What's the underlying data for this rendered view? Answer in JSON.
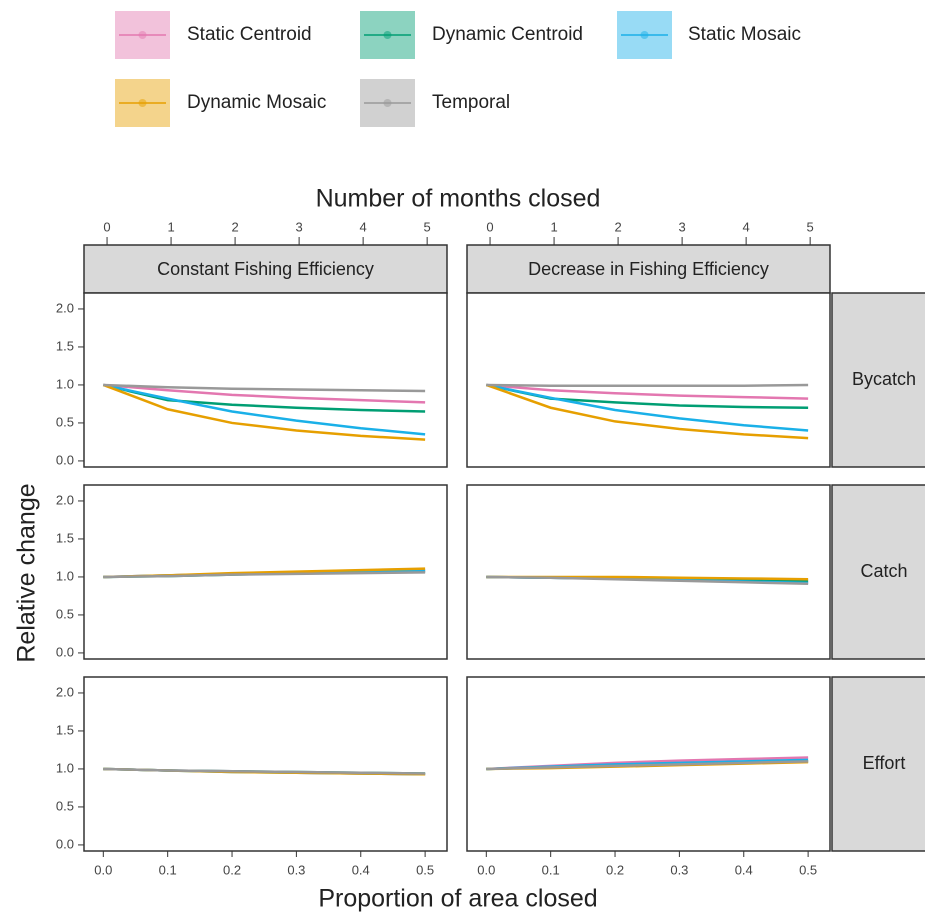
{
  "chart_data": {
    "type": "line",
    "xlabel": "Proportion of area closed",
    "x2label": "Number of months closed",
    "ylabel": "Relative change",
    "x": [
      0,
      0.1,
      0.2,
      0.3,
      0.4,
      0.5
    ],
    "xlim": [
      -0.03,
      0.534
    ],
    "xticks": [
      {
        "value": 0,
        "label": "0.0"
      },
      0.1,
      0.2,
      0.3,
      0.4,
      0.5
    ],
    "x2lim": [
      -0.36,
      5.31
    ],
    "x2ticks": [
      0,
      1,
      2,
      3,
      4,
      5
    ],
    "ylim": [
      -0.08,
      2.21
    ],
    "yticks": [
      {
        "value": 0,
        "label": "0.0"
      },
      0.5,
      {
        "value": 1,
        "label": "1.0"
      },
      1.5,
      {
        "value": 2,
        "label": "2.0"
      }
    ],
    "columns": [
      "Constant Fishing Efficiency",
      "Decrease in Fishing Efficiency"
    ],
    "rows": [
      "Bycatch",
      "Catch",
      "Effort"
    ],
    "series": [
      {
        "name": "Static Centroid",
        "color": "#e377b0"
      },
      {
        "name": "Dynamic Centroid",
        "color": "#009e73"
      },
      {
        "name": "Static Mosaic",
        "color": "#1ab0e8"
      },
      {
        "name": "Dynamic Mosaic",
        "color": "#e69f00"
      },
      {
        "name": "Temporal",
        "color": "#999999"
      }
    ],
    "panels": [
      [
        [
          [
            1,
            0.93,
            0.87,
            0.83,
            0.8,
            0.77
          ],
          [
            1,
            0.8,
            0.74,
            0.7,
            0.67,
            0.65
          ],
          [
            1,
            0.82,
            0.65,
            0.53,
            0.43,
            0.35
          ],
          [
            1,
            0.68,
            0.5,
            0.4,
            0.33,
            0.28
          ],
          [
            1,
            0.97,
            0.95,
            0.94,
            0.93,
            0.92
          ]
        ],
        [
          [
            1,
            0.93,
            0.89,
            0.86,
            0.84,
            0.82
          ],
          [
            1,
            0.82,
            0.77,
            0.73,
            0.71,
            0.7
          ],
          [
            1,
            0.83,
            0.67,
            0.56,
            0.47,
            0.4
          ],
          [
            1,
            0.7,
            0.52,
            0.42,
            0.35,
            0.3
          ],
          [
            1,
            0.99,
            0.99,
            0.99,
            0.99,
            1
          ]
        ]
      ],
      [
        [
          [
            1,
            1.02,
            1.04,
            1.06,
            1.07,
            1.08
          ],
          [
            1,
            1.01,
            1.03,
            1.05,
            1.06,
            1.07
          ],
          [
            1,
            1.02,
            1.04,
            1.06,
            1.08,
            1.09
          ],
          [
            1,
            1.02,
            1.05,
            1.07,
            1.09,
            1.11
          ],
          [
            1,
            1.01,
            1.03,
            1.04,
            1.05,
            1.06
          ]
        ],
        [
          [
            1,
            0.99,
            0.98,
            0.97,
            0.95,
            0.93
          ],
          [
            1,
            0.99,
            0.98,
            0.97,
            0.96,
            0.95
          ],
          [
            1,
            0.99,
            0.98,
            0.96,
            0.94,
            0.92
          ],
          [
            1,
            1,
            1,
            0.99,
            0.98,
            0.97
          ],
          [
            1,
            0.99,
            0.97,
            0.95,
            0.93,
            0.91
          ]
        ]
      ],
      [
        [
          [
            1,
            0.98,
            0.97,
            0.95,
            0.94,
            0.93
          ],
          [
            1,
            0.98,
            0.97,
            0.96,
            0.95,
            0.94
          ],
          [
            1,
            0.98,
            0.96,
            0.95,
            0.94,
            0.93
          ],
          [
            1,
            0.98,
            0.96,
            0.95,
            0.94,
            0.93
          ],
          [
            1,
            0.98,
            0.97,
            0.96,
            0.95,
            0.94
          ]
        ],
        [
          [
            1,
            1.04,
            1.08,
            1.11,
            1.13,
            1.15
          ],
          [
            1,
            1.02,
            1.04,
            1.06,
            1.08,
            1.1
          ],
          [
            1,
            1.03,
            1.06,
            1.08,
            1.1,
            1.12
          ],
          [
            1,
            1.01,
            1.03,
            1.05,
            1.07,
            1.09
          ],
          [
            1,
            1.02,
            1.04,
            1.06,
            1.08,
            1.1
          ]
        ]
      ]
    ]
  }
}
